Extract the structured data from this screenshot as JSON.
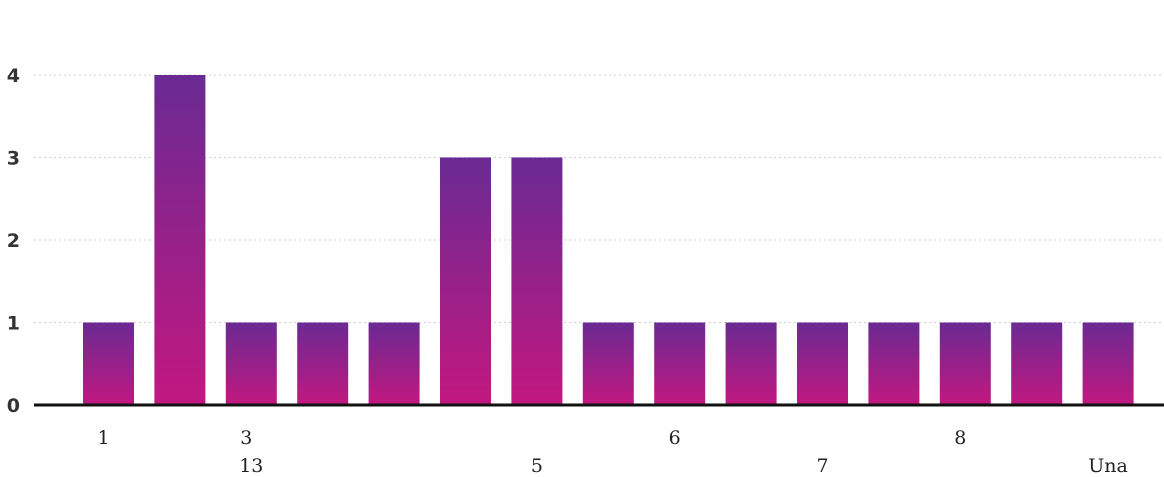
{
  "chart_data": {
    "type": "bar",
    "categories": [
      "1",
      "",
      "3",
      "",
      "",
      "",
      "",
      "",
      "6",
      "",
      "",
      "",
      "8",
      "",
      ""
    ],
    "secondary_labels": [
      "",
      "",
      "13",
      "",
      "",
      "",
      "5",
      "",
      "",
      "",
      "7",
      "",
      "",
      "",
      "Una"
    ],
    "values": [
      1,
      4,
      1,
      1,
      1,
      3,
      3,
      1,
      1,
      1,
      1,
      1,
      1,
      1,
      1
    ],
    "ylim": [
      0,
      4
    ],
    "yticks": [
      0,
      1,
      2,
      3,
      4
    ],
    "grid": true,
    "colors": {
      "bar_top": "#6a2a93",
      "bar_bottom": "#c2187f",
      "axis": "#111111",
      "grid": "#cfcfcf"
    },
    "title": "",
    "xlabel": "",
    "ylabel": ""
  }
}
